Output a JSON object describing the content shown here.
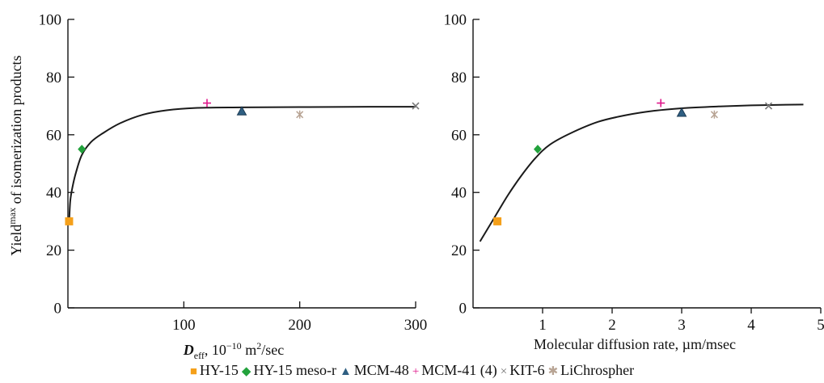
{
  "chart_data": [
    {
      "type": "scatter",
      "panel": "left",
      "ylabel_parts": [
        "Yield",
        "max",
        " of isomerization products"
      ],
      "xlabel_parts": [
        "D",
        "eff",
        ", 10",
        "−10",
        " m",
        "2",
        "/sec"
      ],
      "xlim": [
        0,
        300
      ],
      "ylim": [
        0,
        100
      ],
      "xticks": [
        100,
        200,
        300
      ],
      "yticks": [
        0,
        20,
        40,
        60,
        80,
        100
      ],
      "grid": false,
      "series": [
        {
          "name": "HY-15",
          "points": [
            [
              1,
              30
            ]
          ]
        },
        {
          "name": "HY-15 meso-r",
          "points": [
            [
              12,
              55
            ]
          ]
        },
        {
          "name": "MCM-48",
          "points": [
            [
              150,
              68
            ]
          ]
        },
        {
          "name": "MCM-41 (4)",
          "points": [
            [
              120,
              71
            ]
          ]
        },
        {
          "name": "KIT-6",
          "points": [
            [
              300,
              70
            ]
          ]
        },
        {
          "name": "LiChrospher",
          "points": [
            [
              200,
              67
            ]
          ]
        }
      ],
      "fit_curve": [
        [
          1,
          29
        ],
        [
          2,
          37
        ],
        [
          4,
          42
        ],
        [
          7,
          47
        ],
        [
          12,
          53
        ],
        [
          20,
          57.5
        ],
        [
          30,
          60.5
        ],
        [
          45,
          64
        ],
        [
          65,
          67
        ],
        [
          85,
          68.5
        ],
        [
          110,
          69.3
        ],
        [
          150,
          69.5
        ],
        [
          200,
          69.6
        ],
        [
          260,
          69.7
        ],
        [
          300,
          69.7
        ]
      ]
    },
    {
      "type": "scatter",
      "panel": "right",
      "xlabel": "Molecular diffusion rate, µm/msec",
      "xlim": [
        0,
        5
      ],
      "ylim": [
        0,
        100
      ],
      "xticks": [
        1,
        2,
        3,
        4,
        5
      ],
      "yticks": [
        0,
        20,
        40,
        60,
        80,
        100
      ],
      "grid": false,
      "series": [
        {
          "name": "HY-15",
          "points": [
            [
              0.35,
              30
            ]
          ]
        },
        {
          "name": "HY-15 meso-r",
          "points": [
            [
              0.93,
              55
            ]
          ]
        },
        {
          "name": "MCM-48",
          "points": [
            [
              3.0,
              67.5
            ]
          ]
        },
        {
          "name": "MCM-41 (4)",
          "points": [
            [
              2.7,
              71
            ]
          ]
        },
        {
          "name": "KIT-6",
          "points": [
            [
              4.25,
              70
            ]
          ]
        },
        {
          "name": "LiChrospher",
          "points": [
            [
              3.47,
              67
            ]
          ]
        }
      ],
      "fit_curve": [
        [
          0.1,
          23
        ],
        [
          0.3,
          31
        ],
        [
          0.5,
          39
        ],
        [
          0.7,
          46
        ],
        [
          0.9,
          52
        ],
        [
          1.1,
          56.5
        ],
        [
          1.4,
          60.5
        ],
        [
          1.8,
          64.5
        ],
        [
          2.2,
          66.8
        ],
        [
          2.6,
          68.3
        ],
        [
          3.0,
          69.2
        ],
        [
          3.5,
          69.8
        ],
        [
          4.0,
          70.2
        ],
        [
          4.5,
          70.4
        ],
        [
          4.75,
          70.5
        ]
      ]
    }
  ],
  "legend": {
    "items": [
      {
        "label": "HY-15",
        "glyph": "■",
        "color": "#f5a01a"
      },
      {
        "label": "HY-15 meso-r",
        "glyph": "◆",
        "color": "#22a23c"
      },
      {
        "label": "MCM-48",
        "glyph": "▲",
        "color": "#2f5f82"
      },
      {
        "label": "MCM-41 (4)",
        "glyph": "+",
        "color": "#e0198c"
      },
      {
        "label": "KIT-6",
        "glyph": "×",
        "color": "#777777"
      },
      {
        "label": "LiChrospher",
        "glyph": "✱",
        "color": "#b8a494"
      }
    ]
  },
  "colors": {
    "HY-15": "#f5a01a",
    "HY-15 meso-r": "#22a23c",
    "MCM-48": "#2f5f82",
    "MCM-41 (4)": "#e0198c",
    "KIT-6": "#777777",
    "LiChrospher": "#b8a494",
    "curve": "#1a1a1a"
  }
}
